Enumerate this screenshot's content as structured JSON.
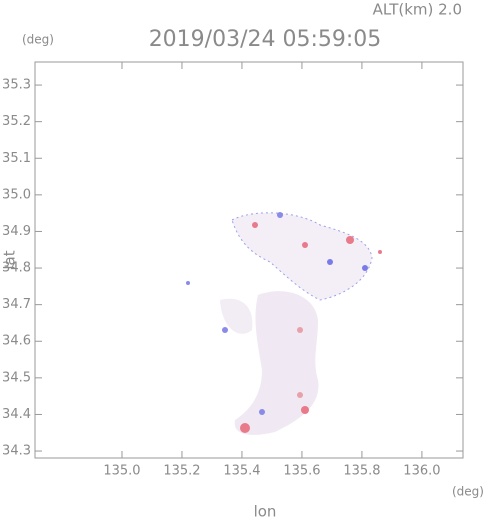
{
  "chart_data": {
    "type": "radar-map",
    "title": "2019/03/24 05:59:05",
    "altitude_label": "ALT(km) 2.0",
    "x_label": "lon",
    "y_label": "lat",
    "x_unit": "(deg)",
    "y_unit": "(deg)",
    "xlim": [
      134.71,
      136.137
    ],
    "ylim": [
      34.281,
      35.363
    ],
    "xticks": [
      {
        "value": 135.0,
        "label": "135.0"
      },
      135.2,
      135.4,
      135.6,
      135.8,
      {
        "value": 136.0,
        "label": "136.0"
      }
    ],
    "yticks": [
      34.3,
      34.4,
      34.5,
      34.6,
      34.7,
      34.8,
      34.9,
      {
        "value": 35.0,
        "label": "35.0"
      },
      35.1,
      35.2,
      35.3
    ]
  }
}
